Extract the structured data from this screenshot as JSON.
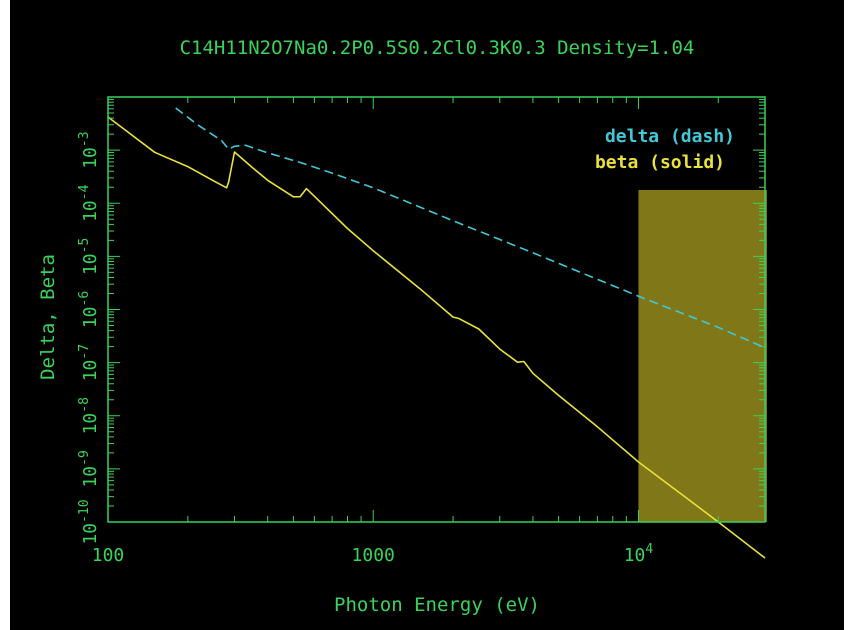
{
  "colors": {
    "background": "#000000",
    "axis": "#39d35a",
    "delta": "#41c7d6",
    "beta": "#e9e13b",
    "highlight": "#807718"
  },
  "chart_data": {
    "type": "line",
    "title": "C14H11N2O7Na0.2P0.5S0.2Cl0.3K0.3 Density=1.04",
    "xlabel": "Photon Energy (eV)",
    "ylabel": "Delta, Beta",
    "xscale": "log",
    "yscale": "log",
    "xlim": [
      100,
      30000
    ],
    "ylim": [
      1e-10,
      0.01
    ],
    "x_ticks": [
      {
        "value": 100,
        "base": "100",
        "exp": ""
      },
      {
        "value": 1000,
        "base": "1000",
        "exp": ""
      },
      {
        "value": 10000,
        "base": "10",
        "exp": "4"
      }
    ],
    "y_ticks": [
      {
        "value": 1e-10,
        "base": "10",
        "exp": "-10"
      },
      {
        "value": 1e-09,
        "base": "10",
        "exp": "-9"
      },
      {
        "value": 1e-08,
        "base": "10",
        "exp": "-8"
      },
      {
        "value": 1e-07,
        "base": "10",
        "exp": "-7"
      },
      {
        "value": 1e-06,
        "base": "10",
        "exp": "-6"
      },
      {
        "value": 1e-05,
        "base": "10",
        "exp": "-5"
      },
      {
        "value": 0.0001,
        "base": "10",
        "exp": "-4"
      },
      {
        "value": 0.001,
        "base": "10",
        "exp": "-3"
      }
    ],
    "legend": [
      {
        "label": "delta (dash)",
        "series": "delta"
      },
      {
        "label": "beta (solid)",
        "series": "beta"
      }
    ],
    "legend_position": "top-right",
    "highlight_region": {
      "x_start": 10000,
      "x_end": 30000
    },
    "series": [
      {
        "name": "delta",
        "style": "dash",
        "x": [
          180,
          220,
          268,
          285,
          300,
          330,
          400,
          540,
          700,
          1000,
          2000,
          4000,
          10000,
          20000,
          30000
        ],
        "y": [
          0.0062,
          0.0029,
          0.00151,
          0.00104,
          0.00118,
          0.00123,
          0.00089,
          0.00057,
          0.00037,
          0.000195,
          4.68e-05,
          1.17e-05,
          1.78e-06,
          4.6e-07,
          1.9e-07
        ]
      },
      {
        "name": "beta",
        "style": "solid",
        "x": [
          100,
          150,
          200,
          250,
          280,
          285,
          300,
          350,
          400,
          500,
          530,
          560,
          600,
          800,
          1000,
          1500,
          2000,
          2100,
          2500,
          3000,
          3500,
          3700,
          4000,
          5000,
          7000,
          10000,
          15000,
          20000,
          30000
        ],
        "y": [
          0.0042,
          0.00091,
          0.00049,
          0.000265,
          0.000195,
          0.00025,
          0.00092,
          0.00047,
          0.00027,
          0.000132,
          0.000133,
          0.000189,
          0.000135,
          3.35e-05,
          1.28e-05,
          2.46e-06,
          7.2e-07,
          6.8e-07,
          4.3e-07,
          1.8e-07,
          1.02e-07,
          1.05e-07,
          6.3e-08,
          2.42e-08,
          6.2e-09,
          1.35e-09,
          2.96e-10,
          1e-10,
          2.1e-11
        ]
      }
    ]
  }
}
